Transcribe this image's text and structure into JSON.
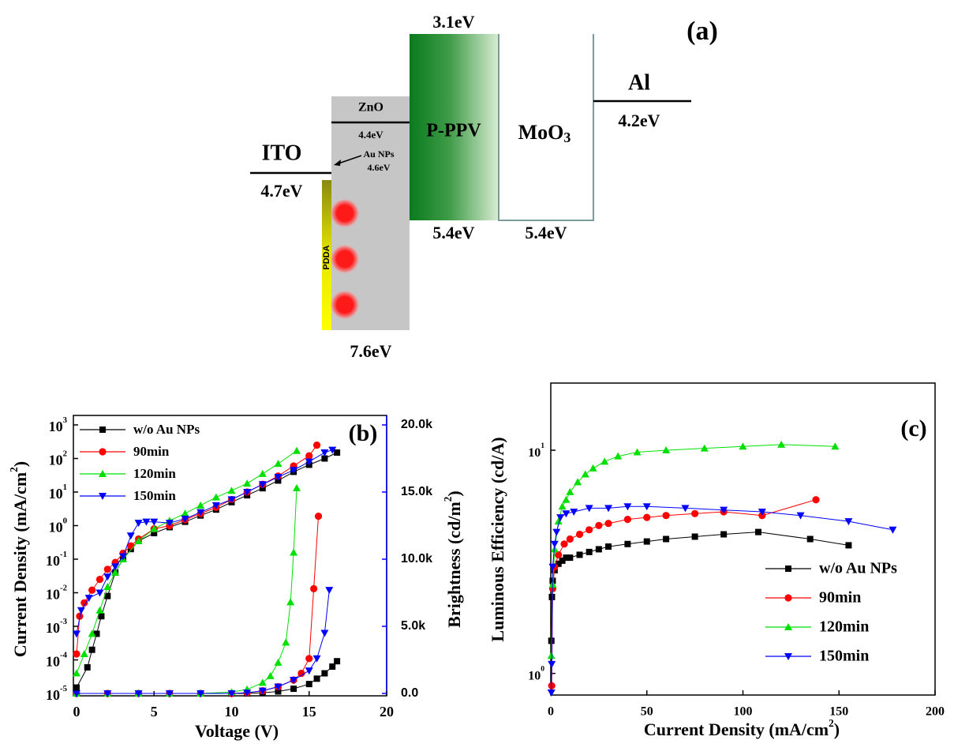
{
  "diagram": {
    "label": "(a)",
    "ito": {
      "name": "ITO",
      "level": "4.7eV"
    },
    "pdda": "PDDA",
    "au_nps": {
      "name": "Au NPs",
      "level": "4.6eV"
    },
    "zno": {
      "name": "ZnO",
      "level": "4.4eV",
      "valence": "7.6eV"
    },
    "pppv": {
      "name": "P-PPV",
      "lumo": "3.1eV",
      "homo": "5.4eV"
    },
    "moo3": {
      "name": "MoO",
      "subscript": "3",
      "level": "5.4eV"
    },
    "al": {
      "name": "Al",
      "level": "4.2eV"
    }
  },
  "chart_data": [
    {
      "type": "line",
      "label": "(b)",
      "x_label": "Voltage (V)",
      "y_label": {
        "text": "Current Density (mA/cm",
        "sup": "2",
        "tail": ")"
      },
      "y2_label": {
        "text": "Brightness (cd/m",
        "sup": "2",
        "tail": ")",
        "color": "#0000ff"
      },
      "xlim": [
        0,
        20
      ],
      "xticks": [
        0,
        5,
        10,
        15,
        20
      ],
      "ylim": [
        1e-05,
        1000
      ],
      "log_y": true,
      "yticks": [
        {
          "value": 1e-05,
          "label": "10",
          "exponent": "-5"
        },
        {
          "value": 0.0001,
          "label": "10",
          "exponent": "-4"
        },
        {
          "value": 0.001,
          "label": "10",
          "exponent": "-3"
        },
        {
          "value": 0.01,
          "label": "10",
          "exponent": "-2"
        },
        {
          "value": 0.1,
          "label": "10",
          "exponent": "-1"
        },
        {
          "value": 1,
          "label": "10",
          "exponent": "0"
        },
        {
          "value": 10,
          "label": "10",
          "exponent": "1"
        },
        {
          "value": 100,
          "label": "10",
          "exponent": "2"
        },
        {
          "value": 1000,
          "label": "10",
          "exponent": "3"
        }
      ],
      "y2lim": [
        0,
        20000
      ],
      "y2ticks": [
        {
          "value": 0,
          "label": "0.0"
        },
        {
          "value": 5000,
          "label": "5.0k"
        },
        {
          "value": 10000,
          "label": "10.0k"
        },
        {
          "value": 15000,
          "label": "15.0k"
        },
        {
          "value": 20000,
          "label": "20.0k"
        }
      ],
      "legend": "upper left",
      "series": [
        {
          "name": "w/o Au NPs",
          "color": "#000000",
          "marker": "square",
          "x": [
            0,
            0.7,
            1,
            1.3,
            1.6,
            2,
            2.5,
            3,
            3.5,
            4,
            5,
            6,
            7,
            8,
            9,
            10,
            11,
            12,
            13,
            14,
            15,
            16,
            16.8
          ],
          "values": [
            1.5e-05,
            6e-05,
            0.0002,
            0.0006,
            0.002,
            0.008,
            0.04,
            0.1,
            0.2,
            0.35,
            0.6,
            0.9,
            1.3,
            2,
            3,
            5,
            8,
            13,
            22,
            40,
            65,
            100,
            150
          ]
        },
        {
          "name": "90min",
          "color": "#ff0000",
          "marker": "circle",
          "x": [
            0,
            0.2,
            0.5,
            1,
            1.5,
            2,
            2.5,
            3,
            3.5,
            4,
            5,
            6,
            7,
            8,
            9,
            10,
            11,
            12,
            13,
            14,
            15,
            15.5
          ],
          "values": [
            0.00015,
            0.002,
            0.005,
            0.012,
            0.025,
            0.05,
            0.08,
            0.15,
            0.25,
            0.4,
            0.8,
            1.0,
            1.5,
            2.3,
            3.5,
            6,
            10,
            17,
            30,
            60,
            120,
            250
          ]
        },
        {
          "name": "120min",
          "color": "#00e000",
          "marker": "triangle-up",
          "x": [
            0,
            0.5,
            1,
            1.5,
            2,
            2.5,
            3,
            4,
            5,
            6,
            7,
            8,
            9,
            10,
            11,
            12,
            13,
            14.2
          ],
          "values": [
            4e-05,
            0.00015,
            0.0006,
            0.003,
            0.015,
            0.04,
            0.1,
            0.35,
            0.8,
            1.4,
            2.3,
            4,
            7,
            11,
            18,
            35,
            70,
            170
          ]
        },
        {
          "name": "150min",
          "color": "#0000ff",
          "marker": "triangle-down",
          "x": [
            0,
            0.3,
            0.8,
            1.5,
            2,
            2.5,
            3,
            3.5,
            4,
            4.5,
            5,
            6,
            7,
            8,
            9,
            10,
            11,
            12,
            13,
            14,
            15,
            16,
            16.5
          ],
          "values": [
            0.0006,
            0.003,
            0.007,
            0.01,
            0.03,
            0.06,
            0.12,
            0.5,
            1.2,
            1.3,
            1.3,
            1.2,
            1.6,
            2.5,
            4,
            6,
            10,
            17,
            28,
            45,
            80,
            150,
            180
          ]
        }
      ],
      "y2_series": [
        {
          "axis": "y2",
          "color": "#000000",
          "marker": "square",
          "x": [
            0,
            2,
            4,
            6,
            8,
            10,
            11,
            12,
            13,
            14,
            15,
            15.5,
            16,
            16.5,
            16.8
          ],
          "values": [
            0,
            0,
            0,
            0,
            0,
            0,
            0,
            50,
            150,
            350,
            700,
            1100,
            1500,
            2000,
            2400
          ]
        },
        {
          "axis": "y2",
          "color": "#ff0000",
          "marker": "circle",
          "x": [
            0,
            2,
            4,
            6,
            8,
            10,
            11,
            12,
            13,
            14,
            14.5,
            15,
            15.3,
            15.6
          ],
          "values": [
            0,
            0,
            0,
            0,
            0,
            0,
            50,
            200,
            500,
            1000,
            1500,
            2600,
            7800,
            13200
          ]
        },
        {
          "axis": "y2",
          "color": "#00e000",
          "marker": "triangle-up",
          "x": [
            0,
            2,
            4,
            6,
            8,
            10,
            11,
            12,
            12.5,
            13,
            13.5,
            13.8,
            14,
            14.2
          ],
          "values": [
            0,
            0,
            0,
            0,
            0,
            100,
            300,
            800,
            1300,
            2300,
            3800,
            6800,
            10500,
            15300
          ]
        },
        {
          "axis": "y2",
          "color": "#0000ff",
          "marker": "triangle-down",
          "x": [
            0,
            2,
            4,
            6,
            8,
            10,
            11,
            12,
            13,
            14,
            15,
            15.5,
            16,
            16.3
          ],
          "values": [
            0,
            0,
            0,
            0,
            0,
            0,
            50,
            200,
            500,
            1000,
            1700,
            2600,
            4500,
            7700
          ]
        }
      ]
    },
    {
      "type": "line",
      "label": "(c)",
      "x_label": {
        "text": "Current Density (mA/cm",
        "sup": "2",
        "tail": ")"
      },
      "y_label": "Luminous Efficiency (cd/A)",
      "xlim": [
        0,
        200
      ],
      "xticks": [
        0,
        50,
        100,
        150,
        200
      ],
      "ylim": [
        0.8,
        20
      ],
      "log_y": true,
      "yticks": [
        {
          "value": 1,
          "label": "10",
          "exponent": "0"
        },
        {
          "value": 10,
          "label": "10",
          "exponent": "1"
        }
      ],
      "legend": "lower right",
      "series": [
        {
          "name": "w/o Au NPs",
          "color": "#000000",
          "marker": "square",
          "x": [
            0.3,
            0.6,
            1,
            2,
            4,
            6,
            8,
            10,
            15,
            20,
            25,
            30,
            40,
            50,
            60,
            75,
            90,
            108,
            135,
            155
          ],
          "values": [
            1.4,
            2.2,
            2.6,
            2.9,
            3.1,
            3.2,
            3.3,
            3.3,
            3.4,
            3.5,
            3.6,
            3.7,
            3.8,
            3.9,
            4.0,
            4.1,
            4.2,
            4.3,
            4.0,
            3.75
          ]
        },
        {
          "name": "90min",
          "color": "#ff0000",
          "marker": "circle",
          "x": [
            0.5,
            1,
            2,
            4,
            7,
            10,
            15,
            20,
            25,
            30,
            40,
            50,
            60,
            75,
            90,
            110,
            138
          ],
          "values": [
            0.88,
            2.4,
            3.0,
            3.4,
            3.8,
            4.0,
            4.2,
            4.4,
            4.6,
            4.7,
            4.9,
            5.0,
            5.1,
            5.2,
            5.3,
            5.1,
            6.0
          ]
        },
        {
          "name": "120min",
          "color": "#00e000",
          "marker": "triangle-up",
          "x": [
            0.3,
            1,
            2,
            4,
            6,
            8,
            10,
            14,
            18,
            22,
            28,
            35,
            45,
            60,
            80,
            100,
            120,
            148
          ],
          "values": [
            1.2,
            2.5,
            3.6,
            4.8,
            5.6,
            6.0,
            6.5,
            7.2,
            7.8,
            8.3,
            8.9,
            9.4,
            9.8,
            10.0,
            10.2,
            10.4,
            10.6,
            10.4
          ]
        },
        {
          "name": "150min",
          "color": "#0000ff",
          "marker": "triangle-down",
          "x": [
            0.3,
            0.5,
            1,
            2,
            3,
            5,
            8,
            12,
            20,
            30,
            40,
            50,
            70,
            90,
            110,
            130,
            155,
            178
          ],
          "values": [
            0.82,
            1.1,
            3.0,
            3.8,
            4.3,
            5.0,
            5.2,
            5.3,
            5.5,
            5.5,
            5.6,
            5.6,
            5.5,
            5.4,
            5.3,
            5.1,
            4.8,
            4.4
          ]
        }
      ]
    }
  ]
}
